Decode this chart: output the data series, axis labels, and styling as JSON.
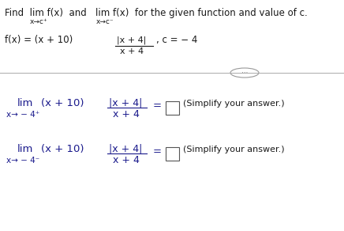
{
  "bg_color": "#ffffff",
  "text_color": "#1a1a8c",
  "black_color": "#1a1a1a",
  "gray_color": "#888888",
  "sep_color": "#aaaaaa",
  "title": "Find  lim f(x)  and   lim f(x)  for the given function and value of c.",
  "sub1": "x→c⁺",
  "sub2": "x→c⁻",
  "func_pre": "f(x) = (x + 10)",
  "func_num": "|x + 4|",
  "func_den": "x + 4",
  "func_c": ", c = − 4",
  "lim1_word": "lim",
  "lim1_main": "(x + 10)",
  "lim1_sub": "x→ − 4⁺",
  "lim1_num": "|x + 4|",
  "lim1_den": "x + 4",
  "simplify": "(Simplify your answer.)",
  "lim2_word": "lim",
  "lim2_main": "(x + 10)",
  "lim2_sub": "x→ − 4⁻",
  "lim2_num": "|x + 4|",
  "lim2_den": "x + 4",
  "fs_title": 8.5,
  "fs_body": 8.5,
  "fs_small": 6.5,
  "fs_lim": 9.5,
  "fs_lim_small": 7.5,
  "fs_simplify": 8.0
}
